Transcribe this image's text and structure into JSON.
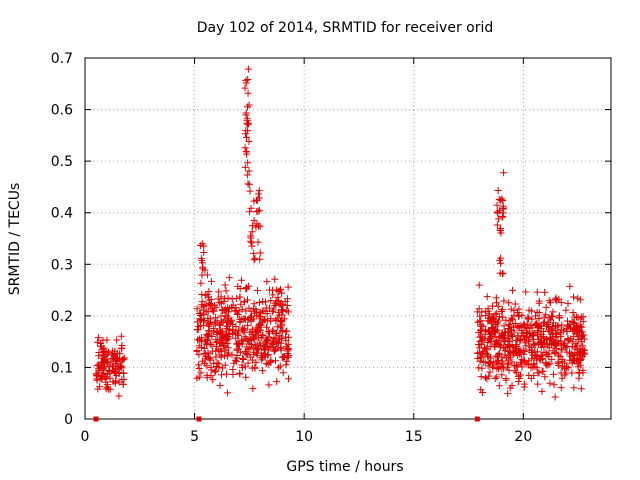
{
  "chart_data": {
    "type": "scatter",
    "title": "Day 102 of 2014, SRMTID for receiver orid",
    "xlabel": "GPS time / hours",
    "ylabel": "SRMTID / TECUs",
    "xlim": [
      0,
      24
    ],
    "ylim": [
      0,
      0.7
    ],
    "xticks": [
      {
        "value": 0,
        "label": "0"
      },
      {
        "value": 5,
        "label": "5"
      },
      {
        "value": 10,
        "label": "10"
      },
      {
        "value": 15,
        "label": "15"
      },
      {
        "value": 20,
        "label": "20"
      }
    ],
    "yticks": [
      {
        "value": 0,
        "label": "0"
      },
      {
        "value": 0.1,
        "label": "0.1"
      },
      {
        "value": 0.2,
        "label": "0.2"
      },
      {
        "value": 0.3,
        "label": "0.3"
      },
      {
        "value": 0.4,
        "label": "0.4"
      },
      {
        "value": 0.5,
        "label": "0.5"
      },
      {
        "value": 0.6,
        "label": "0.6"
      },
      {
        "value": 0.7,
        "label": "0.7"
      }
    ],
    "grid": true,
    "marker": "plus",
    "color": "#e00000",
    "zero_markers_x": [
      0.5,
      5.2,
      17.9
    ],
    "clusters": [
      {
        "x_range": [
          0.5,
          1.8
        ],
        "n": 130,
        "base": [
          0.04,
          0.17
        ],
        "peaks": []
      },
      {
        "x_range": [
          5.1,
          9.3
        ],
        "n": 520,
        "base": [
          0.04,
          0.3
        ],
        "peaks": [
          {
            "x_range": [
              7.3,
              7.5
            ],
            "n": 30,
            "y_range": [
              0.45,
              0.69
            ]
          },
          {
            "x_range": [
              7.5,
              8.0
            ],
            "n": 30,
            "y_range": [
              0.3,
              0.45
            ]
          },
          {
            "x_range": [
              5.2,
              5.5
            ],
            "n": 10,
            "y_range": [
              0.28,
              0.34
            ]
          }
        ]
      },
      {
        "x_range": [
          17.9,
          22.8
        ],
        "n": 620,
        "base": [
          0.03,
          0.27
        ],
        "peaks": [
          {
            "x_range": [
              18.8,
              19.1
            ],
            "n": 22,
            "y_range": [
              0.36,
              0.48
            ]
          },
          {
            "x_range": [
              18.9,
              19.1
            ],
            "n": 6,
            "y_range": [
              0.28,
              0.32
            ]
          }
        ]
      }
    ]
  }
}
